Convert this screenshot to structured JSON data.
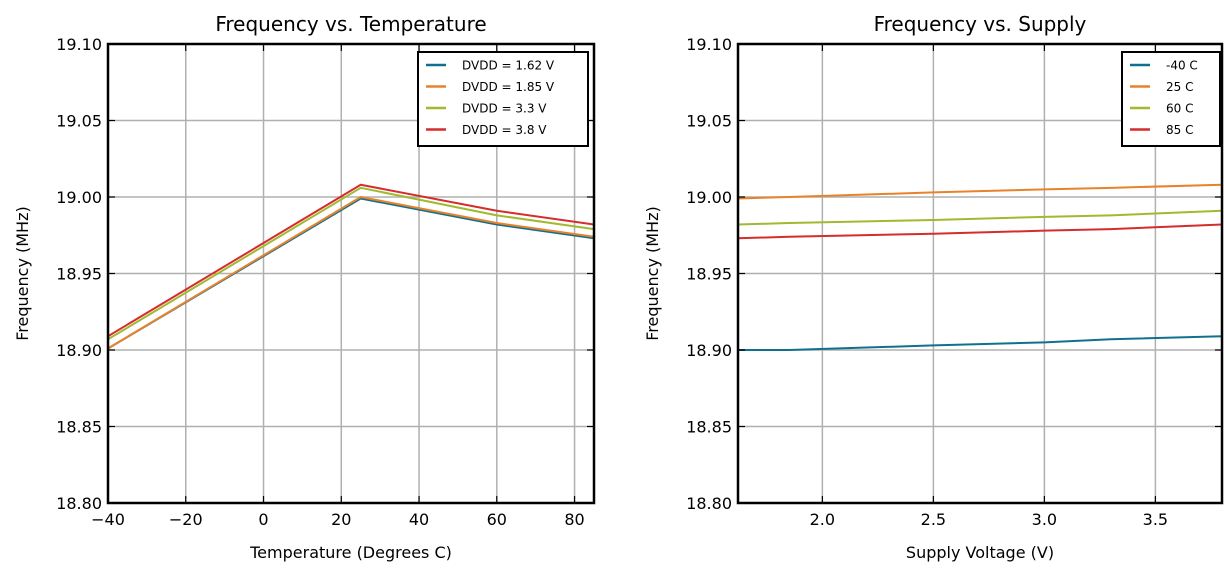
{
  "chart_data": [
    {
      "type": "line",
      "title": "Frequency vs. Temperature",
      "xlabel": "Temperature (Degrees C)",
      "ylabel": "Frequency (MHz)",
      "xlim": [
        -40,
        85
      ],
      "ylim": [
        18.8,
        19.1
      ],
      "xticks": [
        -40,
        -20,
        0,
        20,
        40,
        60,
        80
      ],
      "xtick_labels": [
        "−40",
        "−20",
        "0",
        "20",
        "40",
        "60",
        "80"
      ],
      "yticks": [
        18.8,
        18.85,
        18.9,
        18.95,
        19.0,
        19.05,
        19.1
      ],
      "ytick_labels": [
        "18.80",
        "18.85",
        "18.90",
        "18.95",
        "19.00",
        "19.05",
        "19.10"
      ],
      "grid": true,
      "legend_position": "top-right",
      "x": [
        -40,
        25,
        60,
        85
      ],
      "series": [
        {
          "name": "DVDD = 1.62 V",
          "color": "#10718f",
          "values": [
            18.901,
            18.999,
            18.982,
            18.973
          ]
        },
        {
          "name": "DVDD = 1.85 V",
          "color": "#e8822b",
          "values": [
            18.901,
            19.0,
            18.983,
            18.974
          ]
        },
        {
          "name": "DVDD = 3.3 V",
          "color": "#9fba2f",
          "values": [
            18.907,
            19.006,
            18.988,
            18.979
          ]
        },
        {
          "name": "DVDD = 3.8 V",
          "color": "#d62c2c",
          "values": [
            18.909,
            19.008,
            18.991,
            18.982
          ]
        }
      ]
    },
    {
      "type": "line",
      "title": "Frequency vs. Supply",
      "xlabel": "Supply Voltage (V)",
      "ylabel": "Frequency (MHz)",
      "xlim": [
        1.62,
        3.8
      ],
      "ylim": [
        18.8,
        19.1
      ],
      "xticks": [
        2.0,
        2.5,
        3.0,
        3.5
      ],
      "xtick_labels": [
        "2.0",
        "2.5",
        "3.0",
        "3.5"
      ],
      "yticks": [
        18.8,
        18.85,
        18.9,
        18.95,
        19.0,
        19.05,
        19.1
      ],
      "ytick_labels": [
        "18.80",
        "18.85",
        "18.90",
        "18.95",
        "19.00",
        "19.05",
        "19.10"
      ],
      "grid": true,
      "legend_position": "top-right",
      "x": [
        1.62,
        1.85,
        2.5,
        3.0,
        3.3,
        3.8
      ],
      "series": [
        {
          "name": "-40 C",
          "color": "#10718f",
          "values": [
            18.9,
            18.9,
            18.903,
            18.905,
            18.907,
            18.909
          ]
        },
        {
          "name": "25 C",
          "color": "#e8822b",
          "values": [
            18.999,
            19.0,
            19.003,
            19.005,
            19.006,
            19.008
          ]
        },
        {
          "name": "60 C",
          "color": "#9fba2f",
          "values": [
            18.982,
            18.983,
            18.985,
            18.987,
            18.988,
            18.991
          ]
        },
        {
          "name": "85 C",
          "color": "#d62c2c",
          "values": [
            18.973,
            18.974,
            18.976,
            18.978,
            18.979,
            18.982
          ]
        }
      ]
    }
  ]
}
